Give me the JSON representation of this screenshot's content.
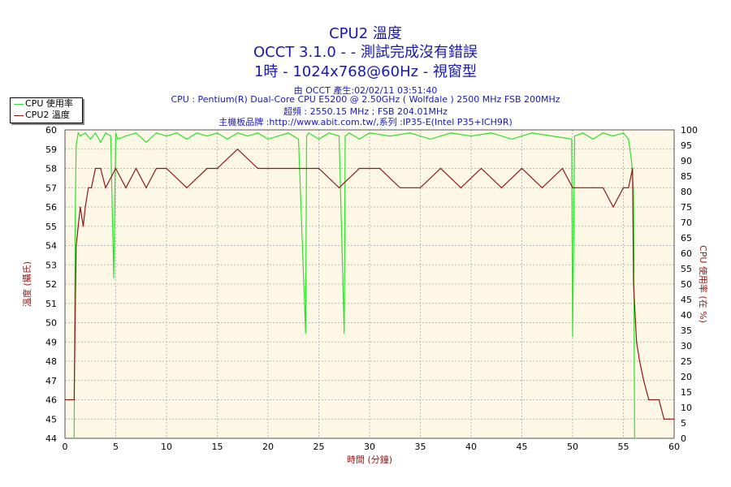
{
  "header": {
    "title": "CPU2 溫度",
    "subtitle1": "OCCT 3.1.0 -  - 測試完成沒有錯誤",
    "subtitle2": "1時 - 1024x768@60Hz - 視窗型",
    "info_lines": [
      "由 OCCT 產生:02/02/11 03:51:40",
      "CPU : Pentium(R) Dual-Core CPU E5200 @ 2.50GHz ( Wolfdale ) 2500 MHz FSB 200MHz",
      "超頻 : 2550.15 MHz ; FSB 204.01MHz",
      "主機板品牌 :http://www.abit.com.tw/,系列 :IP35-E(Intel P35+ICH9R)"
    ]
  },
  "colors": {
    "title": "#1a1aa6",
    "cpu_usage": "#33dd33",
    "cpu2_temp": "#8b1a1a",
    "plot_bg": "#fdf8e6",
    "axis_label_left": "#8b1a1a",
    "axis_label_right": "#8b1a1a"
  },
  "chart_data": {
    "type": "line",
    "xlabel": "時間 (分鐘)",
    "ylabel": "溫度 (攝氏)",
    "y2label": "CPU 使用率 (在 %)",
    "xlim": [
      0,
      60
    ],
    "ylim": [
      44,
      60
    ],
    "y2lim": [
      0,
      100
    ],
    "x_ticks": [
      0,
      5,
      10,
      15,
      20,
      25,
      30,
      35,
      40,
      45,
      50,
      55,
      60
    ],
    "y_ticks": [
      44,
      45,
      46,
      47,
      48,
      49,
      50,
      51,
      52,
      53,
      54,
      55,
      56,
      57,
      58,
      59,
      60
    ],
    "y2_ticks": [
      0,
      5,
      10,
      15,
      20,
      25,
      30,
      35,
      40,
      45,
      50,
      55,
      60,
      65,
      70,
      75,
      80,
      85,
      90,
      95,
      100
    ],
    "grid": true,
    "legend_position": "top-left",
    "series": [
      {
        "name": "CPU 使用率",
        "axis": "right",
        "color": "#33dd33",
        "x": [
          0.9,
          1.0,
          1.1,
          1.3,
          1.5,
          2.0,
          2.5,
          3.0,
          3.5,
          4.0,
          4.5,
          4.8,
          5.0,
          5.2,
          6.0,
          7.0,
          8.0,
          9.0,
          10.0,
          11.0,
          12.0,
          13.0,
          14.0,
          15.0,
          16.0,
          17.0,
          18.0,
          19.0,
          20.0,
          21.0,
          22.0,
          23.0,
          23.7,
          23.8,
          24.0,
          25.0,
          26.0,
          27.0,
          27.5,
          27.6,
          28.0,
          29.0,
          30.0,
          32.0,
          34.0,
          36.0,
          38.0,
          40.0,
          42.0,
          44.0,
          46.0,
          48.0,
          49.9,
          50.0,
          50.2,
          51.0,
          52.0,
          53.0,
          54.0,
          55.0,
          55.5,
          55.8,
          56.0,
          56.1,
          56.2
        ],
        "values": [
          0,
          70,
          95,
          99,
          98,
          99,
          97,
          99,
          96,
          99,
          98,
          52,
          99,
          97,
          98,
          99,
          96,
          99,
          98,
          99,
          97,
          99,
          98,
          99,
          97,
          99,
          98,
          99,
          97,
          98,
          99,
          97,
          34,
          98,
          99,
          97,
          99,
          98,
          34,
          98,
          99,
          97,
          99,
          98,
          99,
          97,
          99,
          98,
          99,
          97,
          99,
          98,
          97,
          33,
          98,
          99,
          97,
          99,
          98,
          99,
          97,
          90,
          80,
          0,
          0
        ]
      },
      {
        "name": "CPU2 溫度",
        "axis": "left",
        "color": "#8b1a1a",
        "x": [
          0,
          0.9,
          1.0,
          1.1,
          1.3,
          1.5,
          1.8,
          2.0,
          2.3,
          2.6,
          3.0,
          3.5,
          4.0,
          5.0,
          6.0,
          7.0,
          8.0,
          9.0,
          10.0,
          12.0,
          14.0,
          15.0,
          17.0,
          19.0,
          21.0,
          23.0,
          25.0,
          27.0,
          29.0,
          31.0,
          33.0,
          35.0,
          37.0,
          39.0,
          41.0,
          43.0,
          45.0,
          47.0,
          49.0,
          50.0,
          51.0,
          52.0,
          53.0,
          54.0,
          55.0,
          55.5,
          55.9,
          56.0,
          56.3,
          56.6,
          57.0,
          57.5,
          58.0,
          58.5,
          59.0,
          59.5,
          60.0
        ],
        "values": [
          46,
          46,
          50,
          54,
          55,
          56,
          55,
          56,
          57,
          57,
          58,
          58,
          57,
          58,
          57,
          58,
          57,
          58,
          58,
          57,
          58,
          58,
          59,
          58,
          58,
          58,
          58,
          57,
          58,
          58,
          57,
          57,
          58,
          57,
          58,
          57,
          58,
          57,
          58,
          57,
          57,
          57,
          57,
          56,
          57,
          57,
          58,
          52,
          49,
          48,
          47,
          46,
          46,
          46,
          45,
          45,
          45
        ]
      }
    ]
  }
}
